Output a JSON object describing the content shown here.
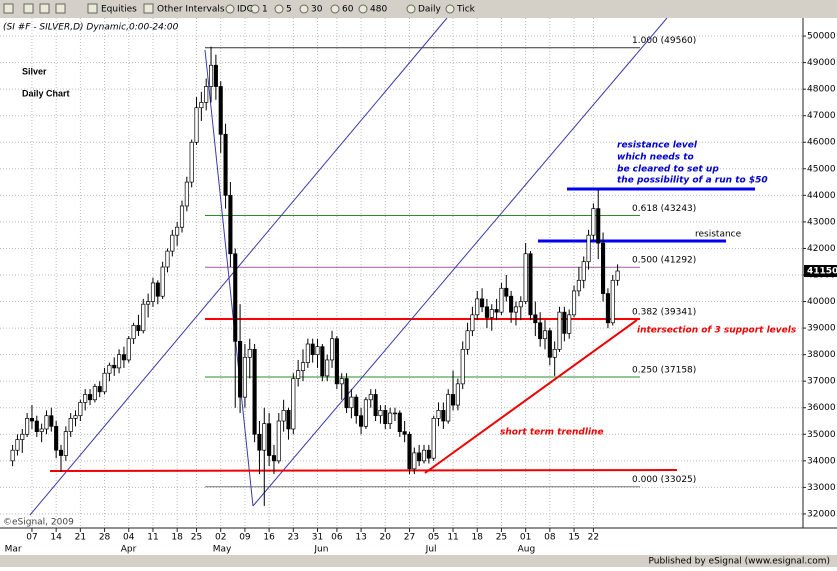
{
  "toolbar": {
    "items": [
      "Equities",
      "Other Intervals",
      "IDC",
      "1",
      "5",
      "30",
      "60",
      "480",
      "Daily",
      "Tick"
    ]
  },
  "chart_data": {
    "type": "candlestick",
    "title": "(SI #F - SILVER,D) Dynamic,0:00-24:00",
    "heading": [
      "Silver",
      "Daily Chart"
    ],
    "categories": [
      null,
      null,
      null,
      null,
      "07",
      null,
      null,
      null,
      null,
      "14",
      null,
      null,
      null,
      null,
      "21",
      null,
      null,
      null,
      null,
      "28",
      null,
      null,
      null,
      null,
      "04",
      null,
      null,
      null,
      null,
      "11",
      null,
      null,
      null,
      null,
      "18",
      null,
      null,
      null,
      "25",
      null,
      null,
      null,
      null,
      "02",
      null,
      null,
      null,
      null,
      "09",
      null,
      null,
      null,
      null,
      "16",
      null,
      null,
      null,
      null,
      "23",
      null,
      null,
      null,
      null,
      "31",
      null,
      null,
      null,
      "06",
      null,
      null,
      null,
      null,
      "13",
      null,
      null,
      null,
      null,
      "20",
      null,
      null,
      null,
      null,
      "27",
      null,
      null,
      null,
      null,
      "05",
      null,
      null,
      null,
      "11",
      null,
      null,
      null,
      null,
      "18",
      null,
      null,
      null,
      null,
      "25",
      null,
      null,
      null,
      null,
      "01",
      null,
      null,
      null,
      null,
      "08",
      null,
      null,
      null,
      null,
      "15",
      null,
      null,
      null,
      "22",
      null,
      null,
      null,
      null,
      null
    ],
    "month_ticks": [
      {
        "value": 0,
        "label": "Mar"
      },
      {
        "value": 24,
        "label": "Apr"
      },
      {
        "value": 43,
        "label": "May"
      },
      {
        "value": 64,
        "label": "Jun"
      },
      {
        "value": 87,
        "label": "Jul"
      },
      {
        "value": 106,
        "label": "Aug"
      }
    ],
    "ohlc": [
      [
        34000,
        34600,
        33800,
        34400
      ],
      [
        34400,
        35000,
        34200,
        34800
      ],
      [
        34800,
        35200,
        34300,
        35000
      ],
      [
        35000,
        35800,
        34900,
        35600
      ],
      [
        35600,
        36100,
        35200,
        35500
      ],
      [
        35500,
        35700,
        34900,
        35100
      ],
      [
        35100,
        35400,
        34700,
        35200
      ],
      [
        35200,
        35900,
        35000,
        35700
      ],
      [
        35700,
        36000,
        35100,
        35300
      ],
      [
        35300,
        35500,
        34100,
        34400
      ],
      [
        34400,
        34600,
        33600,
        34200
      ],
      [
        34200,
        35300,
        34000,
        35100
      ],
      [
        35100,
        35800,
        34900,
        35600
      ],
      [
        35600,
        35900,
        35300,
        35700
      ],
      [
        35700,
        36300,
        35500,
        36200
      ],
      [
        36200,
        36700,
        35900,
        36500
      ],
      [
        36500,
        36700,
        36100,
        36300
      ],
      [
        36300,
        36900,
        36200,
        36800
      ],
      [
        36800,
        37000,
        36400,
        36600
      ],
      [
        36600,
        37500,
        36500,
        37300
      ],
      [
        37300,
        37700,
        37000,
        37600
      ],
      [
        37600,
        37900,
        37200,
        37500
      ],
      [
        37500,
        38200,
        37300,
        38000
      ],
      [
        38000,
        38300,
        37500,
        37800
      ],
      [
        37800,
        38700,
        37700,
        38600
      ],
      [
        38600,
        39200,
        38400,
        39100
      ],
      [
        39100,
        39500,
        38700,
        38900
      ],
      [
        38900,
        40100,
        38800,
        39900
      ],
      [
        39900,
        40300,
        39400,
        40000
      ],
      [
        40000,
        40900,
        39800,
        40700
      ],
      [
        40700,
        40800,
        39900,
        40200
      ],
      [
        40200,
        41500,
        40100,
        41300
      ],
      [
        41300,
        42000,
        41100,
        41900
      ],
      [
        41900,
        42700,
        41700,
        42500
      ],
      [
        42500,
        43000,
        42100,
        42800
      ],
      [
        42800,
        43800,
        42600,
        43600
      ],
      [
        43600,
        44700,
        43400,
        44500
      ],
      [
        44500,
        46100,
        44300,
        46000
      ],
      [
        46000,
        47700,
        45900,
        47300
      ],
      [
        47300,
        47900,
        46800,
        47500
      ],
      [
        47500,
        48400,
        47200,
        48100
      ],
      [
        48100,
        49600,
        47500,
        48900
      ],
      [
        48900,
        49300,
        47600,
        48100
      ],
      [
        48100,
        48300,
        45600,
        46300
      ],
      [
        46300,
        46700,
        43500,
        44000
      ],
      [
        44000,
        44500,
        41300,
        41800
      ],
      [
        41800,
        42000,
        36000,
        38500
      ],
      [
        38500,
        39900,
        35800,
        36400
      ],
      [
        36400,
        38400,
        36000,
        37900
      ],
      [
        37900,
        38600,
        37100,
        38200
      ],
      [
        38200,
        38400,
        34700,
        35000
      ],
      [
        35000,
        35500,
        33500,
        34400
      ],
      [
        34400,
        36000,
        32300,
        35400
      ],
      [
        35400,
        35800,
        33800,
        34200
      ],
      [
        34200,
        34600,
        33500,
        34000
      ],
      [
        34000,
        35800,
        33900,
        35500
      ],
      [
        35500,
        36300,
        35100,
        35900
      ],
      [
        35900,
        36000,
        34800,
        35200
      ],
      [
        35200,
        37300,
        35000,
        37100
      ],
      [
        37100,
        37800,
        36800,
        37400
      ],
      [
        37400,
        38200,
        37000,
        37700
      ],
      [
        37700,
        38600,
        37500,
        38400
      ],
      [
        38400,
        38600,
        37700,
        38000
      ],
      [
        38000,
        38600,
        37500,
        38300
      ],
      [
        38300,
        38400,
        37000,
        37200
      ],
      [
        37200,
        38000,
        37000,
        37800
      ],
      [
        37800,
        38900,
        37500,
        38600
      ],
      [
        38600,
        38700,
        36700,
        36900
      ],
      [
        36900,
        37300,
        36300,
        37100
      ],
      [
        37100,
        37300,
        35800,
        36000
      ],
      [
        36000,
        36700,
        35600,
        36400
      ],
      [
        36400,
        36500,
        35400,
        35700
      ],
      [
        35700,
        36000,
        35000,
        35300
      ],
      [
        35300,
        36400,
        35200,
        36300
      ],
      [
        36300,
        36700,
        36000,
        36500
      ],
      [
        36500,
        36700,
        35500,
        35700
      ],
      [
        35700,
        36100,
        35400,
        35900
      ],
      [
        35900,
        36100,
        35200,
        35400
      ],
      [
        35400,
        36000,
        35200,
        35800
      ],
      [
        35800,
        36000,
        35500,
        35800
      ],
      [
        35800,
        35900,
        34900,
        35100
      ],
      [
        35100,
        35500,
        34700,
        35000
      ],
      [
        35000,
        35100,
        33500,
        33700
      ],
      [
        33700,
        34500,
        33500,
        34300
      ],
      [
        34300,
        34600,
        33800,
        34000
      ],
      [
        34000,
        34600,
        33900,
        34400
      ],
      [
        34400,
        34600,
        33900,
        34100
      ],
      [
        34100,
        35700,
        34000,
        35600
      ],
      [
        35600,
        36200,
        35300,
        35900
      ],
      [
        35900,
        36200,
        35200,
        35500
      ],
      [
        35500,
        36700,
        35400,
        36500
      ],
      [
        36500,
        37400,
        35900,
        36100
      ],
      [
        36100,
        37100,
        35900,
        36900
      ],
      [
        36900,
        38500,
        36700,
        38200
      ],
      [
        38200,
        39200,
        38000,
        38900
      ],
      [
        38900,
        39800,
        38700,
        39500
      ],
      [
        39500,
        40400,
        39300,
        40100
      ],
      [
        40100,
        40500,
        39600,
        39800
      ],
      [
        39800,
        40100,
        39000,
        39400
      ],
      [
        39400,
        39900,
        38900,
        39700
      ],
      [
        39700,
        40100,
        39300,
        39600
      ],
      [
        39600,
        40700,
        39500,
        40500
      ],
      [
        40500,
        41000,
        40000,
        40200
      ],
      [
        40200,
        40400,
        39200,
        39600
      ],
      [
        39600,
        40000,
        39100,
        39800
      ],
      [
        39800,
        40200,
        39300,
        40000
      ],
      [
        40000,
        42200,
        39900,
        41800
      ],
      [
        41800,
        41900,
        39300,
        39500
      ],
      [
        39500,
        40000,
        38700,
        39200
      ],
      [
        39200,
        39600,
        38300,
        38600
      ],
      [
        38600,
        39300,
        38200,
        38900
      ],
      [
        38900,
        39000,
        37600,
        37900
      ],
      [
        37900,
        38500,
        37200,
        38200
      ],
      [
        38200,
        39800,
        38100,
        39600
      ],
      [
        39600,
        39800,
        38500,
        38800
      ],
      [
        38800,
        39700,
        38600,
        39500
      ],
      [
        39500,
        40600,
        39400,
        40400
      ],
      [
        40400,
        41300,
        40200,
        40800
      ],
      [
        40800,
        41700,
        40500,
        41500
      ],
      [
        41500,
        42700,
        41200,
        42500
      ],
      [
        42500,
        43700,
        42300,
        43500
      ],
      [
        43500,
        44200,
        41600,
        42200
      ],
      [
        42200,
        42600,
        40000,
        40300
      ],
      [
        40300,
        40500,
        39000,
        39200
      ],
      [
        39200,
        41000,
        39100,
        40800
      ],
      [
        40800,
        41400,
        40600,
        41150
      ]
    ],
    "ylim": [
      31470,
      50680
    ],
    "yticks": [
      32000,
      33000,
      34000,
      35000,
      36000,
      37000,
      38000,
      39000,
      40000,
      41000,
      42000,
      43000,
      44000,
      45000,
      46000,
      47000,
      48000,
      49000,
      50000
    ],
    "grid": true,
    "last_price": 41150,
    "fib_levels": [
      {
        "value": 49560,
        "label": "1.000 (49560)",
        "color": "#333333",
        "width": 1
      },
      {
        "value": 43243,
        "label": "0.618 (43243)",
        "color": "#2e8b2e",
        "width": 1
      },
      {
        "value": 41292,
        "label": "0.500 (41292)",
        "color": "#a05aa0",
        "width": 1
      },
      {
        "value": 39341,
        "label": "0.382 (39341)",
        "color": "#ff0000",
        "width": 2
      },
      {
        "value": 37158,
        "label": "0.250 (37158)",
        "color": "#2e8b2e",
        "width": 1
      },
      {
        "value": 33025,
        "label": "0.000 (33025)",
        "color": "#777777",
        "width": 1
      }
    ],
    "annotations": {
      "resistance_note": [
        "resistance level",
        "which needs to",
        "be cleared to set up",
        "the possibility of a run to $50"
      ],
      "resistance": "resistance",
      "support": "intersection of 3 support levels",
      "trendline": "short term trendline"
    },
    "copyright": "©eSignal, 2009"
  },
  "footer": "Published by eSignal (www.esignal.com)"
}
